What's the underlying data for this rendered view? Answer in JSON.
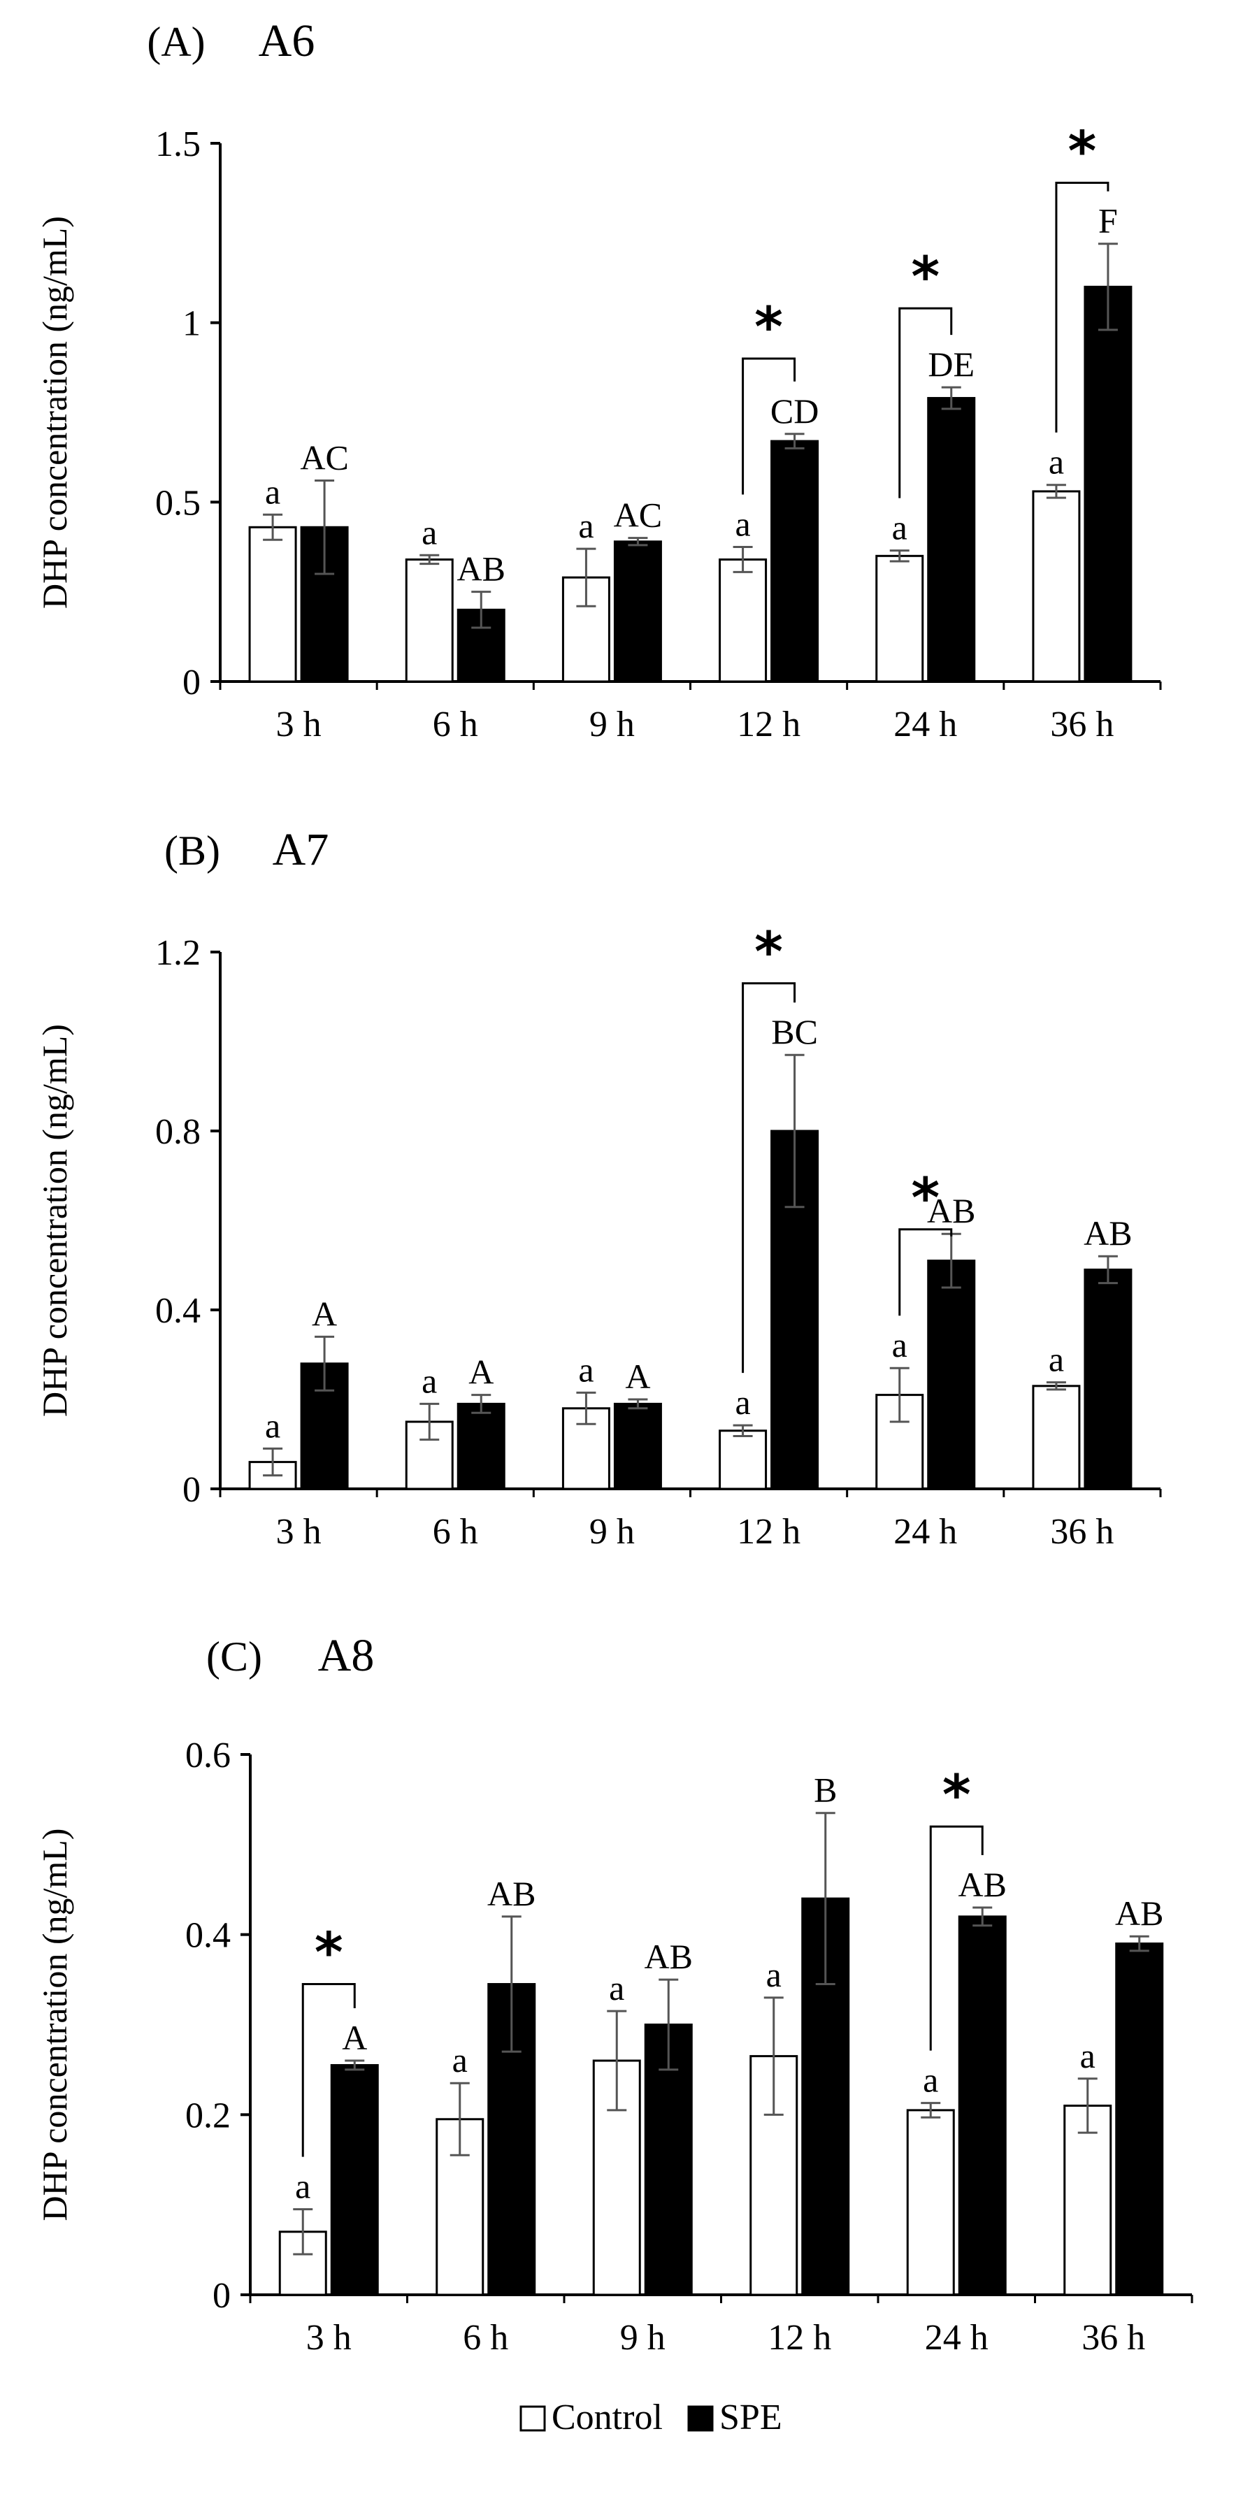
{
  "figure": {
    "legend": [
      {
        "label": "Control",
        "color": "#ffffff"
      },
      {
        "label": "SPE",
        "color": "#000000"
      }
    ]
  },
  "chart_data": [
    {
      "type": "bar",
      "panel_letter": "(A)",
      "title": "A6",
      "ylabel": "DHP concentration (ng/mL)",
      "xlabel": "",
      "ylim": [
        0,
        1.5
      ],
      "yticks": [
        0,
        0.5,
        1,
        1.5
      ],
      "ytick_labels": [
        "0",
        "0.5",
        "1",
        "1.5"
      ],
      "categories": [
        "3 h",
        "6 h",
        "9 h",
        "12 h",
        "24 h",
        "36 h"
      ],
      "series": [
        {
          "name": "Control",
          "color": "#ffffff",
          "values": [
            0.43,
            0.34,
            0.29,
            0.34,
            0.35,
            0.53
          ],
          "errors": [
            0.035,
            0.012,
            0.08,
            0.035,
            0.015,
            0.018
          ],
          "labels": [
            "a",
            "a",
            "a",
            "a",
            "a",
            "a"
          ]
        },
        {
          "name": "SPE",
          "color": "#000000",
          "values": [
            0.43,
            0.2,
            0.39,
            0.67,
            0.79,
            1.1
          ],
          "errors": [
            0.13,
            0.05,
            0.01,
            0.02,
            0.03,
            0.12
          ],
          "labels": [
            "AC",
            "AB",
            "AC",
            "CD",
            "DE",
            "F"
          ]
        }
      ],
      "significance": [
        {
          "category": "12 h",
          "label": "*",
          "bracket_top": 0.9
        },
        {
          "category": "24 h",
          "label": "*",
          "bracket_top": 1.04
        },
        {
          "category": "36 h",
          "label": "*",
          "bracket_top": 1.39
        }
      ]
    },
    {
      "type": "bar",
      "panel_letter": "(B)",
      "title": "A7",
      "ylabel": "DHP concentration (ng/mL)",
      "xlabel": "",
      "ylim": [
        0,
        1.2
      ],
      "yticks": [
        0,
        0.4,
        0.8,
        1.2
      ],
      "ytick_labels": [
        "0",
        "0.4",
        "0.8",
        "1.2"
      ],
      "categories": [
        "3 h",
        "6 h",
        "9 h",
        "12 h",
        "24 h",
        "36 h"
      ],
      "series": [
        {
          "name": "Control",
          "color": "#ffffff",
          "values": [
            0.06,
            0.15,
            0.18,
            0.13,
            0.21,
            0.23
          ],
          "errors": [
            0.03,
            0.04,
            0.035,
            0.012,
            0.06,
            0.008
          ],
          "labels": [
            "a",
            "a",
            "a",
            "a",
            "a",
            "a"
          ]
        },
        {
          "name": "SPE",
          "color": "#000000",
          "values": [
            0.28,
            0.19,
            0.19,
            0.8,
            0.51,
            0.49
          ],
          "errors": [
            0.06,
            0.02,
            0.01,
            0.17,
            0.06,
            0.03
          ],
          "labels": [
            "A",
            "A",
            "A",
            "BC",
            "AB",
            "AB"
          ]
        }
      ],
      "significance": [
        {
          "category": "12 h",
          "label": "*",
          "bracket_top": 1.13
        },
        {
          "category": "24 h",
          "label": "*",
          "bracket_top": 0.58
        }
      ]
    },
    {
      "type": "bar",
      "panel_letter": "(C)",
      "title": "A8",
      "ylabel": "DHP concentration (ng/mL)",
      "xlabel": "",
      "ylim": [
        0,
        0.6
      ],
      "yticks": [
        0,
        0.2,
        0.4,
        0.6
      ],
      "ytick_labels": [
        "0",
        "0.2",
        "0.4",
        "0.6"
      ],
      "categories": [
        "3 h",
        "6 h",
        "9 h",
        "12 h",
        "24 h",
        "36 h"
      ],
      "series": [
        {
          "name": "Control",
          "color": "#ffffff",
          "values": [
            0.07,
            0.195,
            0.26,
            0.265,
            0.205,
            0.21
          ],
          "errors": [
            0.025,
            0.04,
            0.055,
            0.065,
            0.008,
            0.03
          ],
          "labels": [
            "a",
            "a",
            "a",
            "a",
            "a",
            "a"
          ]
        },
        {
          "name": "SPE",
          "color": "#000000",
          "values": [
            0.255,
            0.345,
            0.3,
            0.44,
            0.42,
            0.39
          ],
          "errors": [
            0.005,
            0.075,
            0.05,
            0.095,
            0.01,
            0.008
          ],
          "labels": [
            "A",
            "AB",
            "AB",
            "B",
            "AB",
            "AB"
          ]
        }
      ],
      "significance": [
        {
          "category": "3 h",
          "label": "*",
          "bracket_top": 0.345
        },
        {
          "category": "24 h",
          "label": "*",
          "bracket_top": 0.52
        }
      ]
    }
  ]
}
